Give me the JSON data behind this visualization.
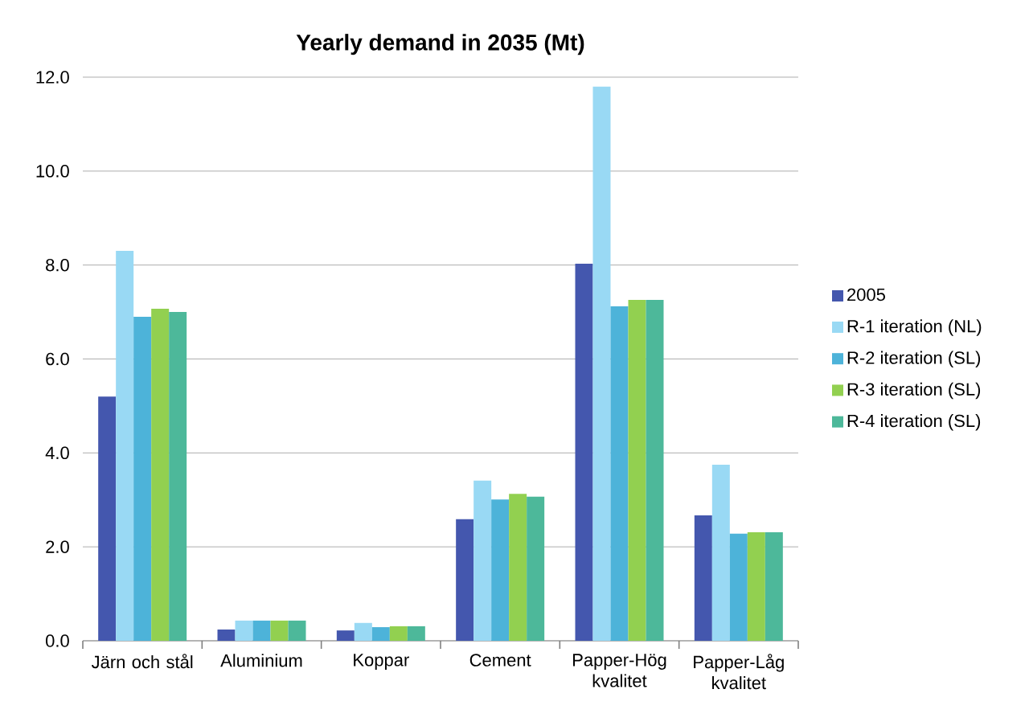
{
  "chart_data": {
    "type": "bar",
    "title": "Yearly demand in 2035 (Mt)",
    "categories": [
      "Järn och stål",
      "Aluminium",
      "Koppar",
      "Cement",
      "Papper-Hög kvalitet",
      "Papper-Låg kvalitet"
    ],
    "series": [
      {
        "name": "2005",
        "color": "#4457ae",
        "values": [
          5.2,
          0.24,
          0.22,
          2.59,
          8.03,
          2.67
        ]
      },
      {
        "name": "R-1 iteration (NL)",
        "color": "#99d9f4",
        "values": [
          8.3,
          0.43,
          0.38,
          3.41,
          11.8,
          3.75
        ]
      },
      {
        "name": "R-2 iteration (SL)",
        "color": "#4db3d9",
        "values": [
          6.9,
          0.43,
          0.29,
          3.01,
          7.12,
          2.28
        ]
      },
      {
        "name": "R-3 iteration (SL)",
        "color": "#92d050",
        "values": [
          7.07,
          0.43,
          0.31,
          3.13,
          7.26,
          2.31
        ]
      },
      {
        "name": "R-4 iteration (SL)",
        "color": "#4db89a",
        "values": [
          7.0,
          0.43,
          0.31,
          3.07,
          7.26,
          2.31
        ]
      }
    ],
    "ylim": [
      0,
      12
    ],
    "yticks": [
      {
        "value": 0,
        "label": "0.0"
      },
      {
        "value": 2,
        "label": "2.0"
      },
      {
        "value": 4,
        "label": "4.0"
      },
      {
        "value": 6,
        "label": "6.0"
      },
      {
        "value": 8,
        "label": "8.0"
      },
      {
        "value": 10,
        "label": "10.0"
      },
      {
        "value": 12,
        "label": "12.0"
      }
    ],
    "grid": "y",
    "legend": "right"
  }
}
